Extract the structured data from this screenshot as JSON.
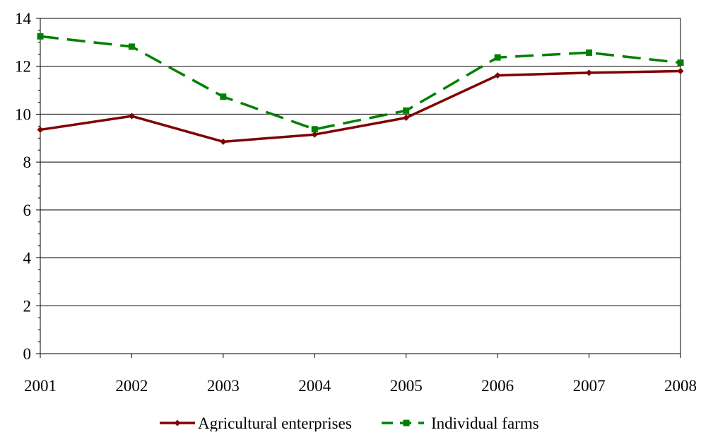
{
  "chart_data": {
    "type": "line",
    "title": "",
    "xlabel": "",
    "ylabel": "",
    "x": [
      "2001",
      "2002",
      "2003",
      "2004",
      "2005",
      "2006",
      "2007",
      "2008"
    ],
    "ylim": [
      0,
      14
    ],
    "yticks": [
      "0",
      "2",
      "4",
      "6",
      "8",
      "10",
      "12",
      "14"
    ],
    "grid": "horizontal",
    "legend_position": "bottom",
    "series": [
      {
        "name": "Agricultural enterprises",
        "values": [
          9.35,
          9.92,
          8.85,
          9.15,
          9.85,
          11.62,
          11.73,
          11.8
        ],
        "color": "#800000",
        "line_style": "solid",
        "marker": "diamond"
      },
      {
        "name": "Individual farms",
        "values": [
          13.25,
          12.82,
          10.73,
          9.37,
          10.15,
          12.37,
          12.57,
          12.15
        ],
        "color": "#008000",
        "line_style": "dashed",
        "marker": "square"
      }
    ]
  }
}
